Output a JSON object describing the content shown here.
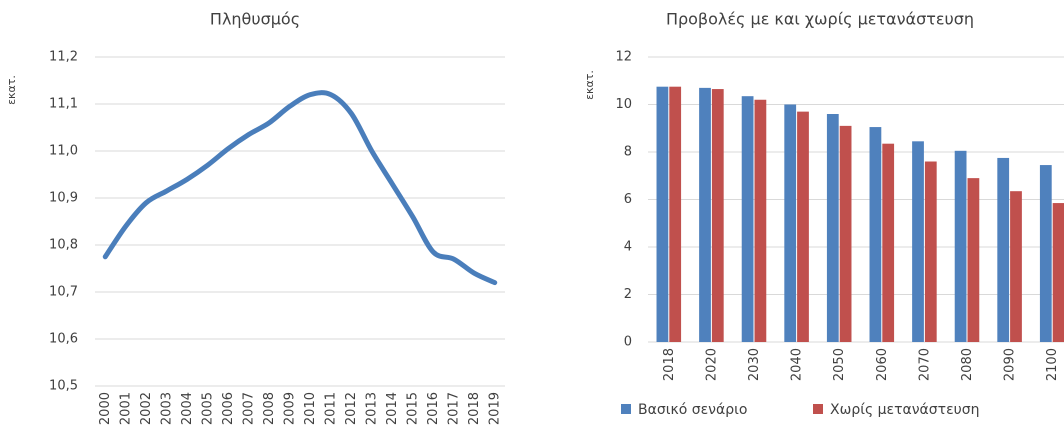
{
  "chart_data": [
    {
      "type": "line",
      "title": "Πληθυσμός",
      "ylabel": "εκατ.",
      "categories": [
        "2000",
        "2001",
        "2002",
        "2003",
        "2004",
        "2005",
        "2006",
        "2007",
        "2008",
        "2009",
        "2010",
        "2011",
        "2012",
        "2013",
        "2014",
        "2015",
        "2016",
        "2017",
        "2018",
        "2019"
      ],
      "series": [
        {
          "color": "#4a7ebb",
          "values": [
            10.775,
            10.84,
            10.89,
            10.915,
            10.94,
            10.97,
            11.005,
            11.035,
            11.06,
            11.095,
            11.12,
            11.12,
            11.08,
            11.0,
            10.93,
            10.86,
            10.785,
            10.77,
            10.74,
            10.72
          ]
        }
      ],
      "ylim": [
        10.5,
        11.2
      ],
      "yticks": [
        {
          "value": 10.5,
          "label": "10,5"
        },
        {
          "value": 10.6,
          "label": "10,6"
        },
        {
          "value": 10.7,
          "label": "10,7"
        },
        {
          "value": 10.8,
          "label": "10,8"
        },
        {
          "value": 10.9,
          "label": "10,9"
        },
        {
          "value": 11.0,
          "label": "11,0"
        },
        {
          "value": 11.1,
          "label": "11,1"
        },
        {
          "value": 11.2,
          "label": "11,2"
        }
      ],
      "grid": true
    },
    {
      "type": "bar",
      "title": "Προβολές με και χωρίς μετανάστευση",
      "ylabel": "εκατ.",
      "categories": [
        "2018",
        "2020",
        "2030",
        "2040",
        "2050",
        "2060",
        "2070",
        "2080",
        "2090",
        "2100"
      ],
      "series": [
        {
          "name": "Βασικό σενάριο",
          "color": "#4f81bd",
          "values": [
            10.75,
            10.7,
            10.35,
            10.0,
            9.6,
            9.05,
            8.45,
            8.05,
            7.75,
            7.45
          ]
        },
        {
          "name": "Χωρίς μετανάστευση",
          "color": "#c0504d",
          "values": [
            10.75,
            10.65,
            10.2,
            9.7,
            9.1,
            8.35,
            7.6,
            6.9,
            6.35,
            5.85
          ]
        }
      ],
      "ylim": [
        0,
        12
      ],
      "yticks": [
        0,
        2,
        4,
        6,
        8,
        10,
        12
      ],
      "grid": true,
      "legend": "bottom"
    }
  ]
}
